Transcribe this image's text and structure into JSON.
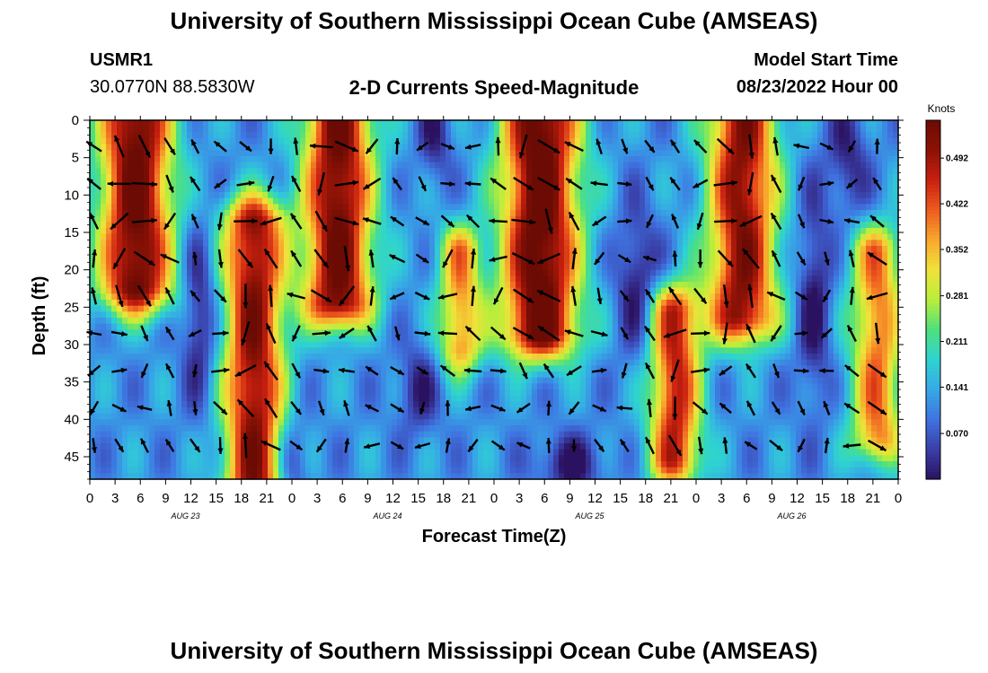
{
  "page": {
    "title": "University of Southern Mississippi Ocean Cube (AMSEAS)",
    "footer_title": "University of Southern Mississippi Ocean Cube (AMSEAS)",
    "station": "USMR1",
    "coords": "30.0770N  88.5830W",
    "plot_title": "2-D Currents Speed-Magnitude",
    "model_start_label": "Model Start Time",
    "model_start_value": "08/23/2022 Hour 00"
  },
  "colors": {
    "scale": [
      "#2b1260",
      "#3a3fa8",
      "#3f73e0",
      "#36a9e6",
      "#2ed3d1",
      "#4fe07d",
      "#b9ee3a",
      "#f0e23a",
      "#f8a72c",
      "#ee5a1f",
      "#c8200f",
      "#8c1206",
      "#6b0b04"
    ],
    "arrow": "#000000"
  },
  "chart_data": {
    "type": "heatmap",
    "title": "2-D Currents Speed-Magnitude",
    "xlabel": "Forecast Time(Z)",
    "ylabel": "Depth (ft)",
    "x_tick_labels": [
      "0",
      "3",
      "6",
      "9",
      "12",
      "15",
      "18",
      "21",
      "0",
      "3",
      "6",
      "9",
      "12",
      "15",
      "18",
      "21",
      "0",
      "3",
      "6",
      "9",
      "12",
      "15",
      "18",
      "21",
      "0",
      "3",
      "6",
      "9",
      "12",
      "15",
      "18",
      "21",
      "0"
    ],
    "x_range_hours": [
      0,
      96
    ],
    "day_labels": [
      {
        "label": "AUG 23",
        "hour": 12
      },
      {
        "label": "AUG 24",
        "hour": 36
      },
      {
        "label": "AUG 25",
        "hour": 60
      },
      {
        "label": "AUG 26",
        "hour": 84
      }
    ],
    "y_ticks": [
      0,
      5,
      10,
      15,
      20,
      25,
      30,
      35,
      40,
      45
    ],
    "y_tick_labels": [
      "0",
      "5",
      "10",
      "15",
      "20",
      "25",
      "30",
      "35",
      "40",
      "45"
    ],
    "ylim": [
      0,
      48
    ],
    "colorbar": {
      "unit": "Knots",
      "min": 0.0,
      "max": 0.55,
      "ticks": [
        0.492,
        0.422,
        0.352,
        0.281,
        0.211,
        0.141,
        0.07
      ],
      "tick_labels": [
        "0.492",
        "0.422",
        "0.352",
        "0.281",
        "0.211",
        "0.141",
        "0.070"
      ]
    },
    "blobs": [
      {
        "h": 5.5,
        "d0": -2,
        "d1": 22,
        "sh": 4.2,
        "v": 0.56
      },
      {
        "h": 19.5,
        "d0": 14,
        "d1": 50,
        "sh": 3.5,
        "v": 0.52
      },
      {
        "h": 29.5,
        "d0": -2,
        "d1": 24,
        "sh": 4.0,
        "v": 0.55
      },
      {
        "h": 44.0,
        "d0": 18,
        "d1": 30,
        "sh": 2.5,
        "v": 0.38
      },
      {
        "h": 53.5,
        "d0": -2,
        "d1": 28,
        "sh": 4.5,
        "v": 0.58
      },
      {
        "h": 69.5,
        "d0": 26,
        "d1": 45,
        "sh": 3.0,
        "v": 0.47
      },
      {
        "h": 77.5,
        "d0": -2,
        "d1": 26,
        "sh": 4.0,
        "v": 0.52
      },
      {
        "h": 93.5,
        "d0": 18,
        "d1": 42,
        "sh": 3.0,
        "v": 0.4
      }
    ],
    "lows": [
      {
        "h": 13,
        "d": 26,
        "sh": 2.0,
        "sd": 12,
        "v": 0.12
      },
      {
        "h": 24,
        "d": 46,
        "sh": 2.0,
        "sd": 6,
        "v": 0.1
      },
      {
        "h": 39,
        "d": 36,
        "sh": 2.5,
        "sd": 6,
        "v": 0.1
      },
      {
        "h": 41,
        "d": 2,
        "sh": 2.0,
        "sd": 6,
        "v": 0.1
      },
      {
        "h": 65,
        "d": 22,
        "sh": 2.5,
        "sd": 10,
        "v": 0.12
      },
      {
        "h": 86,
        "d": 24,
        "sh": 2.0,
        "sd": 14,
        "v": 0.12
      },
      {
        "h": 90,
        "d": 5,
        "sh": 2.5,
        "sd": 8,
        "v": 0.1
      },
      {
        "h": 57,
        "d": 46,
        "sh": 4,
        "sd": 4,
        "v": 0.12
      }
    ],
    "background_speed": 0.12,
    "arrow_grid": {
      "hour_step": 3,
      "depth_step": 5,
      "hour_start": 0.5,
      "depth_start": 3.5
    }
  }
}
